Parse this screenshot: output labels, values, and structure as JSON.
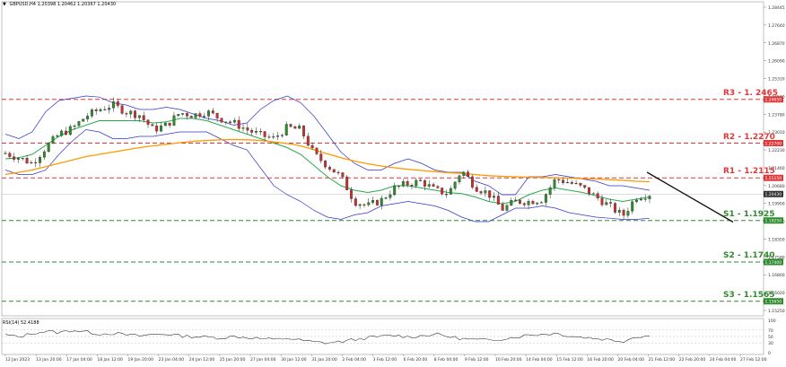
{
  "header": {
    "symbol": "GBPUSD,H4",
    "ohlc": "1.20398 1.20462 1.20367 1.20430",
    "triangle": "▼"
  },
  "levels": [
    {
      "name": "R3",
      "label": "R3 - 1. 2465",
      "price": 1.2465,
      "tag": "1.24650",
      "color": "#e0383a"
    },
    {
      "name": "R2",
      "label": "R2 - 1.2270",
      "price": 1.227,
      "tag": "1.22700",
      "color": "#e0383a"
    },
    {
      "name": "R1",
      "label": "R1 - 1.2115",
      "price": 1.2115,
      "tag": "1.21150",
      "color": "#e0383a"
    },
    {
      "name": "S1",
      "label": "S1 - 1.1925",
      "price": 1.1925,
      "tag": "1.19250",
      "color": "#2e8b2e"
    },
    {
      "name": "S2",
      "label": "S2 - 1.1740",
      "price": 1.174,
      "tag": "1.17400",
      "color": "#2e8b2e"
    },
    {
      "name": "S3",
      "label": "S3 - 1.1565",
      "price": 1.1565,
      "tag": "1.15650",
      "color": "#2e8b2e"
    }
  ],
  "current_price": {
    "value": 1.2043,
    "tag": "1.20430"
  },
  "price_axis": {
    "min": 1.15,
    "max": 1.29,
    "ticks": [
      "1.28445",
      "1.27640",
      "1.26870",
      "1.26090",
      "1.25310",
      "1.24560",
      "1.23780",
      "1.23010",
      "1.22230",
      "1.21460",
      "1.20680",
      "1.19900",
      "1.19130",
      "1.18350",
      "1.17580",
      "1.16800",
      "1.16020",
      "1.15250"
    ]
  },
  "time_axis": [
    "12 Jan 2023",
    "13 Jan 20:00",
    "17 Jan 04:00",
    "18 Jan 12:00",
    "19 Jan 20:00",
    "23 Jan 04:00",
    "24 Jan 12:00",
    "25 Jan 20:00",
    "27 Jan 04:00",
    "30 Jan 12:00",
    "31 Jan 20:00",
    "2 Feb 04:00",
    "3 Feb 12:00",
    "6 Feb 20:00",
    "8 Feb 04:00",
    "9 Feb 12:00",
    "10 Feb 20:00",
    "14 Feb 04:00",
    "15 Feb 12:00",
    "16 Feb 20:00",
    "20 Feb 04:00",
    "21 Feb 12:00",
    "22 Feb 20:00",
    "24 Feb 04:00",
    "27 Feb 12:00"
  ],
  "rsi": {
    "label": "RSI(14) 52.4188",
    "ticks": [
      "100",
      "70",
      "50",
      "30",
      "0"
    ]
  },
  "colors": {
    "bull": "#2e8b2e",
    "bear": "#c8312b",
    "wick": "#222222",
    "bands": "#3333cc",
    "ma_mid": "#2aa84a",
    "ma_long": "#ff9900",
    "trend": "#111111",
    "grid": "#e8e8e8"
  },
  "chart_data": {
    "type": "candlestick",
    "instrument": "GBPUSD",
    "timeframe": "H4",
    "close_path": [
      1.2225,
      1.2205,
      1.218,
      1.225,
      1.231,
      1.2335,
      1.239,
      1.242,
      1.244,
      1.241,
      1.2395,
      1.233,
      1.235,
      1.2405,
      1.2395,
      1.241,
      1.238,
      1.236,
      1.233,
      1.2305,
      1.229,
      1.234,
      1.233,
      1.222,
      1.217,
      1.212,
      1.201,
      1.199,
      1.2015,
      1.207,
      1.209,
      1.21,
      1.206,
      1.2045,
      1.215,
      1.2075,
      1.2045,
      1.1975,
      1.201,
      1.201,
      1.202,
      1.211,
      1.2095,
      1.207,
      1.203,
      1.199,
      1.1945,
      1.203,
      1.2043
    ],
    "bb_upper": [
      1.231,
      1.229,
      1.232,
      1.241,
      1.246,
      1.247,
      1.248,
      1.2475,
      1.245,
      1.244,
      1.242,
      1.242,
      1.243,
      1.242,
      1.24,
      1.238,
      1.237,
      1.235,
      1.236,
      1.242,
      1.246,
      1.248,
      1.245,
      1.239,
      1.231,
      1.223,
      1.218,
      1.215,
      1.215,
      1.218,
      1.22,
      1.218,
      1.215,
      1.214,
      1.214,
      1.21,
      1.208,
      1.204,
      1.204,
      1.212,
      1.212,
      1.213,
      1.212,
      1.211,
      1.21,
      1.208,
      1.208,
      1.207,
      1.206
    ],
    "bb_lower": [
      1.215,
      1.213,
      1.213,
      1.215,
      1.222,
      1.228,
      1.233,
      1.232,
      1.229,
      1.229,
      1.23,
      1.23,
      1.231,
      1.232,
      1.232,
      1.232,
      1.229,
      1.226,
      1.224,
      1.216,
      1.208,
      1.204,
      1.201,
      1.197,
      1.194,
      1.193,
      1.195,
      1.196,
      1.199,
      1.2,
      1.201,
      1.2,
      1.199,
      1.197,
      1.194,
      1.192,
      1.192,
      1.195,
      1.198,
      1.198,
      1.199,
      1.198,
      1.196,
      1.195,
      1.194,
      1.1935,
      1.193,
      1.193,
      1.1935
    ],
    "ma_mid": [
      1.22,
      1.2205,
      1.222,
      1.226,
      1.23,
      1.233,
      1.235,
      1.237,
      1.237,
      1.237,
      1.237,
      1.236,
      1.2365,
      1.238,
      1.238,
      1.237,
      1.235,
      1.233,
      1.231,
      1.229,
      1.227,
      1.225,
      1.222,
      1.217,
      1.212,
      1.208,
      1.206,
      1.205,
      1.206,
      1.208,
      1.208,
      1.207,
      1.206,
      1.205,
      1.2045,
      1.203,
      1.201,
      1.2,
      1.201,
      1.204,
      1.206,
      1.207,
      1.206,
      1.205,
      1.2035,
      1.202,
      1.201,
      1.202,
      1.203
    ],
    "ma_long": [
      1.213,
      1.214,
      1.215,
      1.2165,
      1.218,
      1.2195,
      1.221,
      1.222,
      1.223,
      1.224,
      1.225,
      1.2258,
      1.2265,
      1.2272,
      1.2278,
      1.2282,
      1.2285,
      1.2286,
      1.2285,
      1.2282,
      1.2275,
      1.2268,
      1.2258,
      1.224,
      1.2222,
      1.2205,
      1.219,
      1.2178,
      1.2168,
      1.216,
      1.2153,
      1.2148,
      1.2143,
      1.2138,
      1.2135,
      1.213,
      1.2125,
      1.2122,
      1.212,
      1.2118,
      1.2117,
      1.2116,
      1.2114,
      1.2112,
      1.211,
      1.2107,
      1.2104,
      1.21,
      1.2098
    ],
    "trendline": [
      [
        0.847,
        1.214
      ],
      [
        0.96,
        1.1918
      ]
    ],
    "rsi_values": [
      55,
      48,
      60,
      66,
      62,
      70,
      64,
      58,
      60,
      55,
      52,
      56,
      58,
      52,
      50,
      48,
      46,
      50,
      47,
      44,
      40,
      45,
      38,
      33,
      30,
      34,
      40,
      46,
      50,
      53,
      49,
      52,
      58,
      50,
      43,
      40,
      38,
      43,
      48,
      55,
      57,
      60,
      52,
      48,
      44,
      40,
      35,
      50,
      52
    ]
  }
}
